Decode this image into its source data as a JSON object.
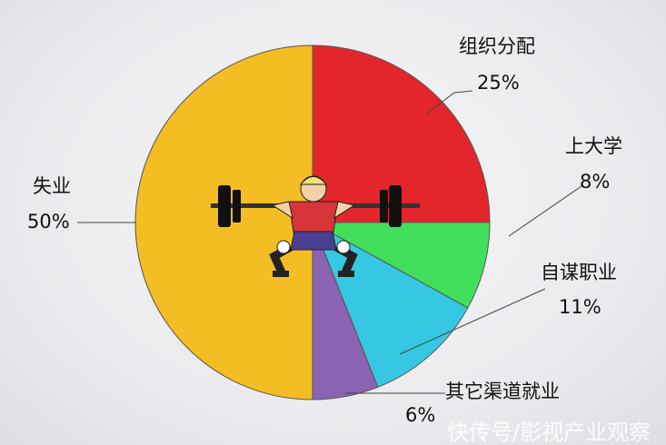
{
  "chart_data": {
    "type": "pie",
    "start": "top",
    "direction": "clockwise",
    "slices": [
      {
        "label": "组织分配",
        "value": 25,
        "value_label": "25%",
        "color": "#e3262b"
      },
      {
        "label": "上大学",
        "value": 8,
        "value_label": "8%",
        "color": "#41df5b"
      },
      {
        "label": "自谋职业",
        "value": 11,
        "value_label": "11%",
        "color": "#36c8e2"
      },
      {
        "label": "其它渠道就业",
        "value": 6,
        "value_label": "6%",
        "color": "#8a63b3"
      },
      {
        "label": "失业",
        "value": 50,
        "value_label": "50%",
        "color": "#f5bd24"
      }
    ]
  },
  "center_icon": "weightlifter-icon",
  "watermark": "快传号/影视产业观察"
}
